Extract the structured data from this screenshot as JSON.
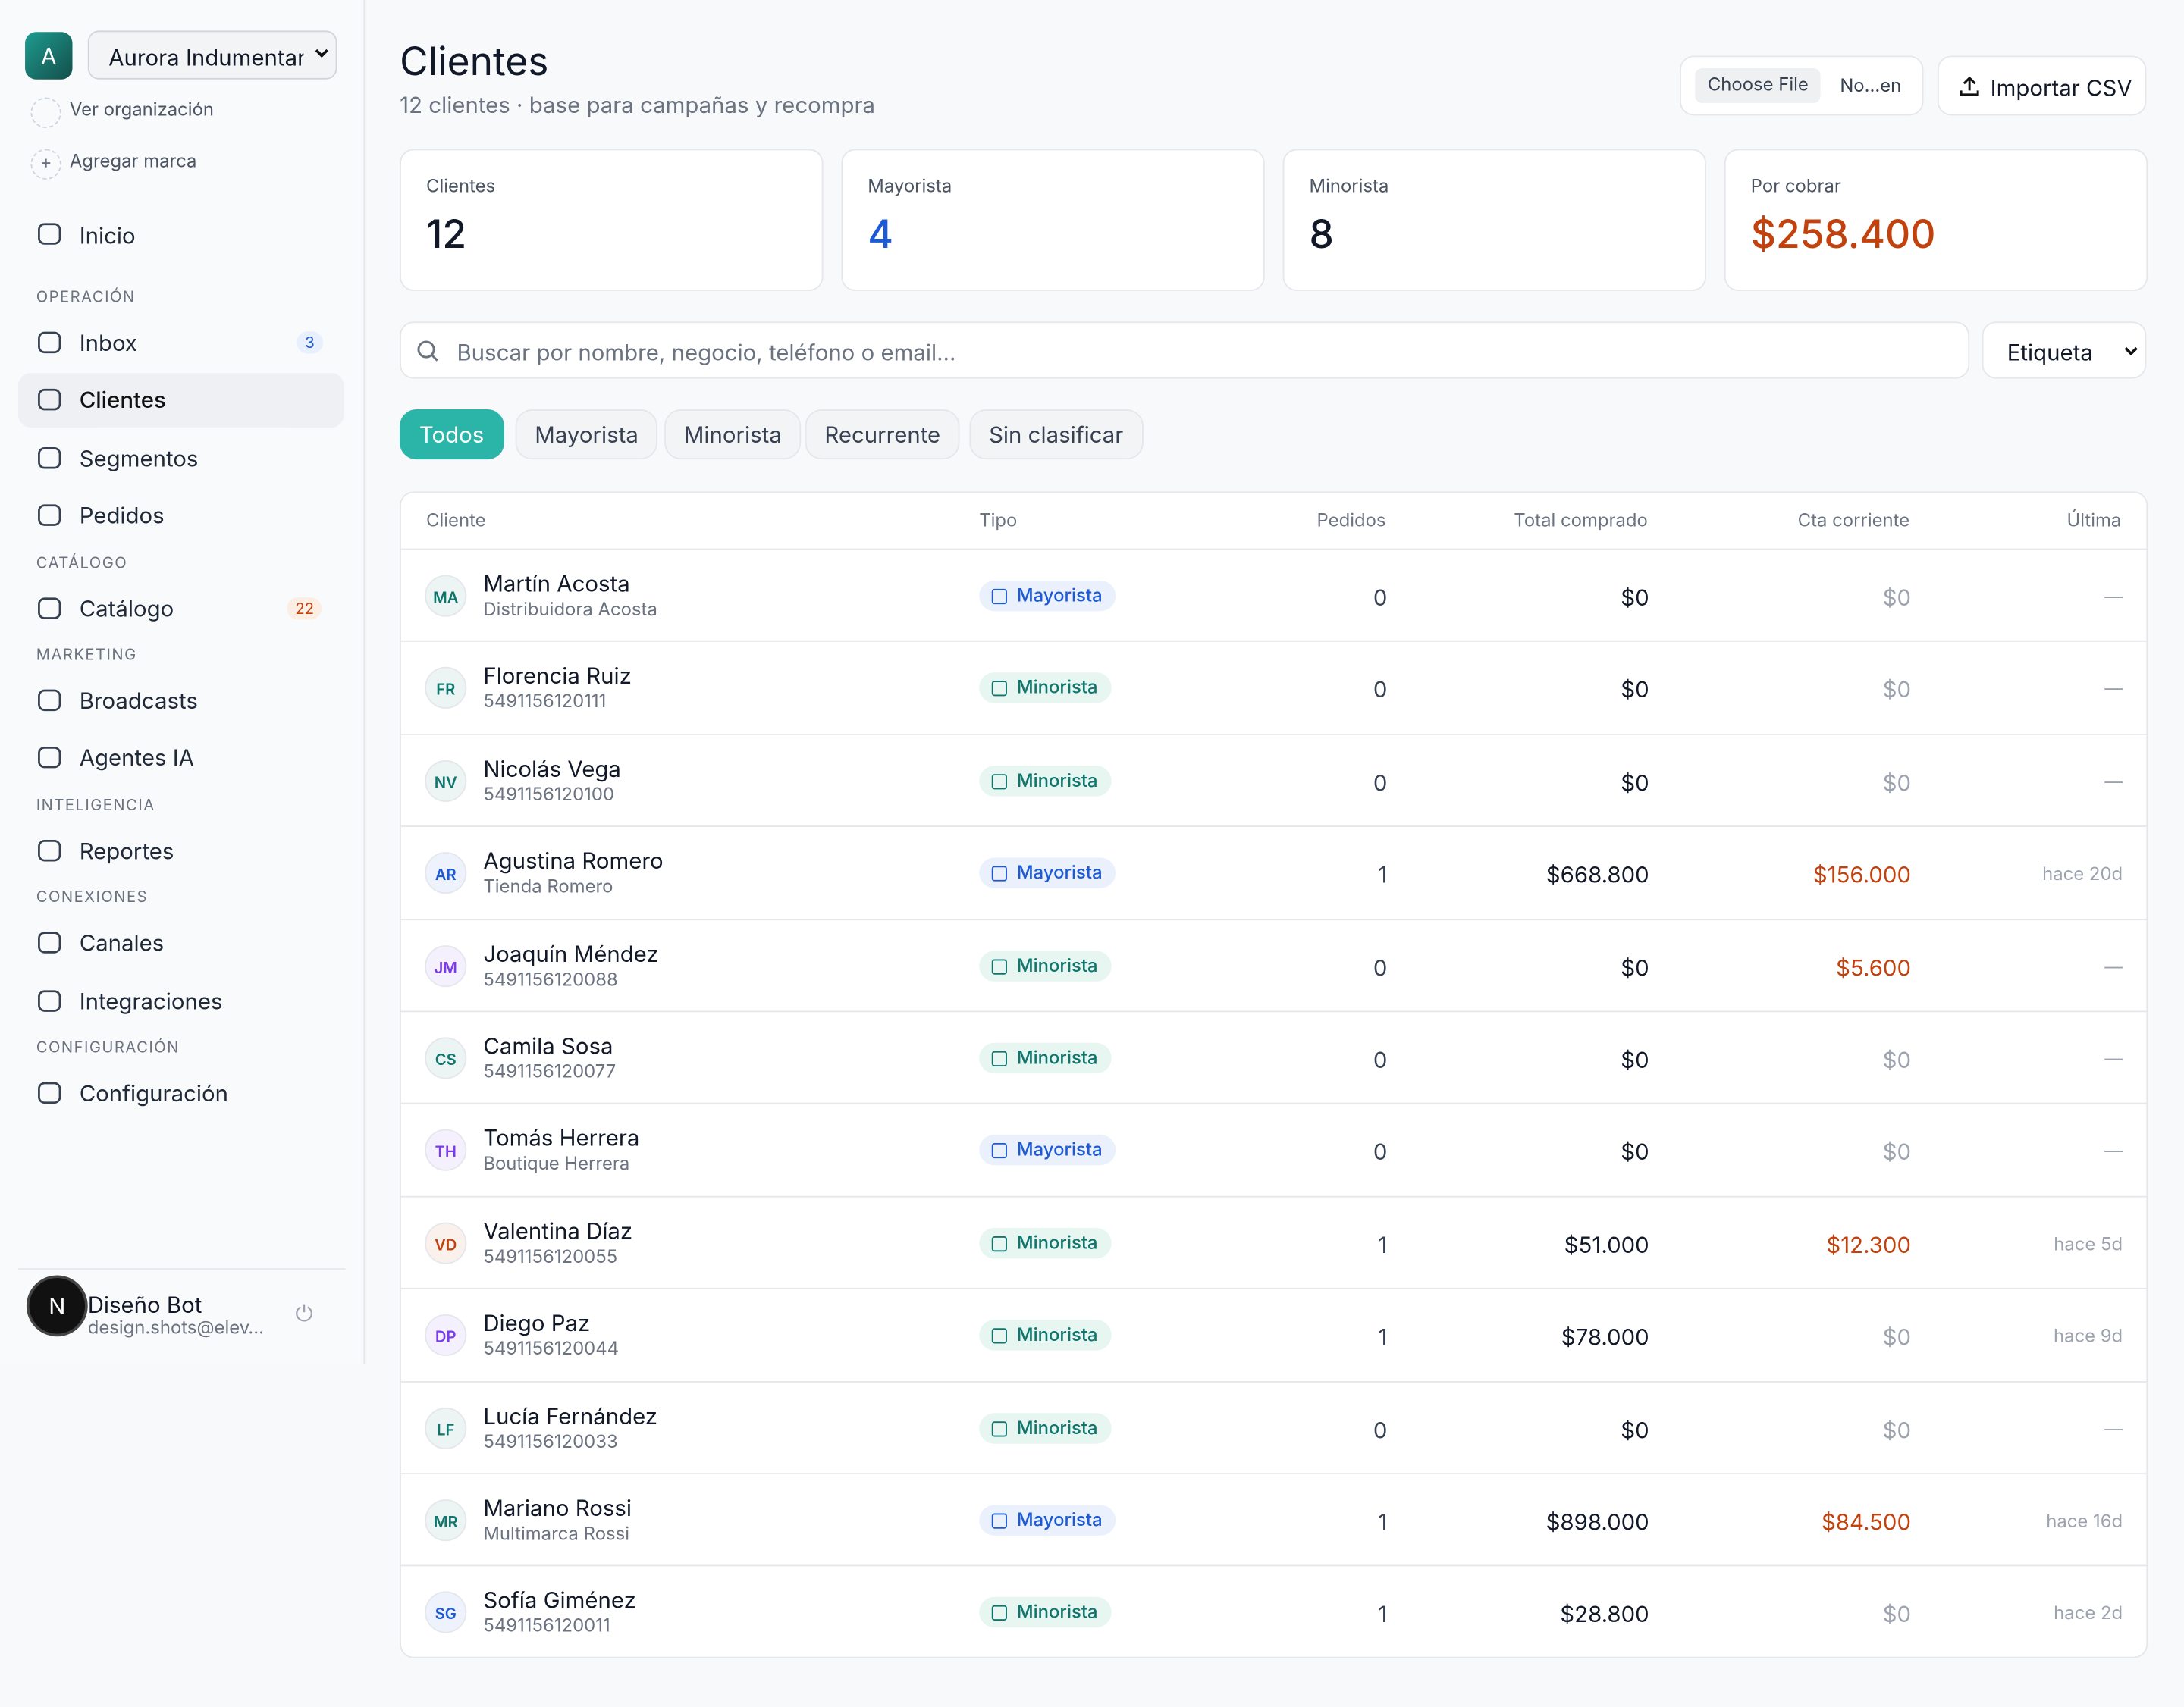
{
  "sidebar": {
    "org_initial": "A",
    "org_name": "Aurora Indumentaria",
    "links": [
      "Ver organización",
      "Agregar marca"
    ],
    "home": "Inicio",
    "sections": [
      {
        "title": "OPERACIÓN",
        "items": [
          {
            "label": "Inbox",
            "badge": 3
          },
          {
            "label": "Clientes"
          },
          {
            "label": "Segmentos"
          },
          {
            "label": "Pedidos"
          }
        ]
      },
      {
        "title": "CATÁLOGO",
        "items": [
          {
            "label": "Catálogo",
            "badge": 22
          }
        ]
      },
      {
        "title": "MARKETING",
        "items": [
          {
            "label": "Broadcasts"
          },
          {
            "label": "Agentes IA"
          }
        ]
      },
      {
        "title": "INTELIGENCIA",
        "items": [
          {
            "label": "Reportes"
          }
        ]
      },
      {
        "title": "CONEXIONES",
        "items": [
          {
            "label": "Canales"
          },
          {
            "label": "Integraciones"
          }
        ]
      },
      {
        "title": "CONFIGURACIÓN",
        "items": [
          {
            "label": "Configuración"
          }
        ]
      }
    ],
    "user": {
      "avatar": "N",
      "name": "Diseño Bot",
      "email": "design.shots@elev…"
    }
  },
  "header": {
    "title": "Clientes",
    "subtitle": "12 clientes · base para campañas y recompra",
    "file_button": "Choose File",
    "file_name": "No…en",
    "import": "Importar CSV"
  },
  "stats": [
    {
      "label": "Clientes",
      "value": 12,
      "color": "#111827"
    },
    {
      "label": "Mayorista",
      "value": 4,
      "color": "#1d5bd6"
    },
    {
      "label": "Minorista",
      "value": 8,
      "color": "#111827"
    },
    {
      "label": "Por cobrar",
      "value": "$258.400",
      "color": "#c2410c"
    }
  ],
  "search": {
    "placeholder": "Buscar por nombre, negocio, teléfono o email...",
    "select": "Etiqueta"
  },
  "filters": [
    "Todos",
    "Mayorista",
    "Minorista",
    "Recurrente",
    "Sin clasificar"
  ],
  "table": {
    "columns": [
      "Cliente",
      "Tipo",
      "Pedidos",
      "Total comprado",
      "Cta corriente",
      "Última"
    ],
    "rows": [
      {
        "initials": "MA",
        "avatar_color": "#0f766e",
        "name": "Martín Acosta",
        "sub": "Distribuidora Acosta",
        "tipo": "Mayorista",
        "pedidos": 0,
        "total": "$0",
        "cta": "$0",
        "cta_color": "#9ca3af",
        "ultima": "—"
      },
      {
        "initials": "FR",
        "avatar_color": "#0f766e",
        "name": "Florencia Ruiz",
        "sub": "5491156120111",
        "tipo": "Minorista",
        "pedidos": 0,
        "total": "$0",
        "cta": "$0",
        "cta_color": "#9ca3af",
        "ultima": "—"
      },
      {
        "initials": "NV",
        "avatar_color": "#0f766e",
        "name": "Nicolás Vega",
        "sub": "5491156120100",
        "tipo": "Minorista",
        "pedidos": 0,
        "total": "$0",
        "cta": "$0",
        "cta_color": "#9ca3af",
        "ultima": "—"
      },
      {
        "initials": "AR",
        "avatar_color": "#1d5bd6",
        "name": "Agustina Romero",
        "sub": "Tienda Romero",
        "tipo": "Mayorista",
        "pedidos": 1,
        "total": "$668.800",
        "cta": "$156.000",
        "cta_color": "#c2410c",
        "ultima": "hace 20d"
      },
      {
        "initials": "JM",
        "avatar_color": "#7c3aed",
        "name": "Joaquín Méndez",
        "sub": "5491156120088",
        "tipo": "Minorista",
        "pedidos": 0,
        "total": "$0",
        "cta": "$5.600",
        "cta_color": "#c2410c",
        "ultima": "—"
      },
      {
        "initials": "CS",
        "avatar_color": "#0f766e",
        "name": "Camila Sosa",
        "sub": "5491156120077",
        "tipo": "Minorista",
        "pedidos": 0,
        "total": "$0",
        "cta": "$0",
        "cta_color": "#9ca3af",
        "ultima": "—"
      },
      {
        "initials": "TH",
        "avatar_color": "#7c3aed",
        "name": "Tomás Herrera",
        "sub": "Boutique Herrera",
        "tipo": "Mayorista",
        "pedidos": 0,
        "total": "$0",
        "cta": "$0",
        "cta_color": "#9ca3af",
        "ultima": "—"
      },
      {
        "initials": "VD",
        "avatar_color": "#c2410c",
        "name": "Valentina Díaz",
        "sub": "5491156120055",
        "tipo": "Minorista",
        "pedidos": 1,
        "total": "$51.000",
        "cta": "$12.300",
        "cta_color": "#c2410c",
        "ultima": "hace 5d"
      },
      {
        "initials": "DP",
        "avatar_color": "#7c3aed",
        "name": "Diego Paz",
        "sub": "5491156120044",
        "tipo": "Minorista",
        "pedidos": 1,
        "total": "$78.000",
        "cta": "$0",
        "cta_color": "#9ca3af",
        "ultima": "hace 9d"
      },
      {
        "initials": "LF",
        "avatar_color": "#0f766e",
        "name": "Lucía Fernández",
        "sub": "5491156120033",
        "tipo": "Minorista",
        "pedidos": 0,
        "total": "$0",
        "cta": "$0",
        "cta_color": "#9ca3af",
        "ultima": "—"
      },
      {
        "initials": "MR",
        "avatar_color": "#0f766e",
        "name": "Mariano Rossi",
        "sub": "Multimarca Rossi",
        "tipo": "Mayorista",
        "pedidos": 1,
        "total": "$898.000",
        "cta": "$84.500",
        "cta_color": "#c2410c",
        "ultima": "hace 16d"
      },
      {
        "initials": "SG",
        "avatar_color": "#1d5bd6",
        "name": "Sofía Giménez",
        "sub": "5491156120011",
        "tipo": "Minorista",
        "pedidos": 1,
        "total": "$28.800",
        "cta": "$0",
        "cta_color": "#9ca3af",
        "ultima": "hace 2d"
      }
    ]
  }
}
